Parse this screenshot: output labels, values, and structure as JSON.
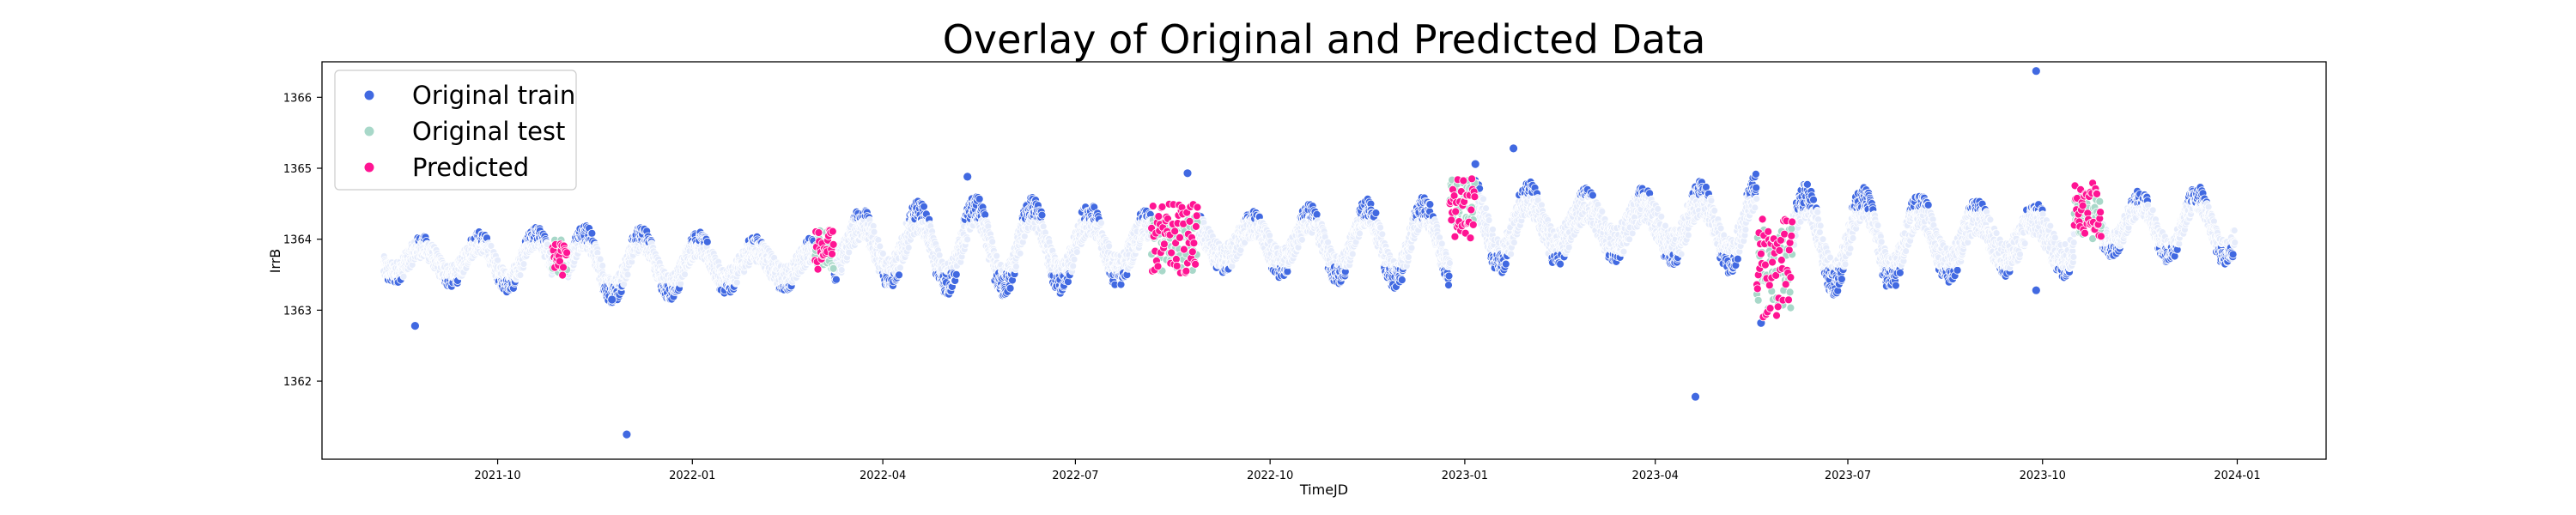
{
  "chart_data": {
    "type": "scatter",
    "title": "Overlay of Original and Predicted Data",
    "xlabel": "TimeJD",
    "ylabel": "IrrB",
    "xlim": [
      "2021-07-10",
      "2024-02-12"
    ],
    "ylim": [
      1360.9,
      1366.5
    ],
    "x_ticks": [
      "2021-10",
      "2022-01",
      "2022-04",
      "2022-07",
      "2022-10",
      "2023-01",
      "2023-04",
      "2023-07",
      "2023-10",
      "2024-01"
    ],
    "y_ticks": [
      1362,
      1363,
      1364,
      1365,
      1366
    ],
    "legend": {
      "position": "top-left"
    },
    "grid": false,
    "series": [
      {
        "name": "Original train",
        "color": "#4169e1",
        "style": "oscillating",
        "segments": [
          {
            "start": "2021-08-08",
            "end": "2021-10-27",
            "center": 1363.7,
            "amp": 0.35
          },
          {
            "start": "2021-11-03",
            "end": "2022-02-28",
            "center": 1363.65,
            "amp": 0.4
          },
          {
            "start": "2022-03-09",
            "end": "2022-08-06",
            "center": 1363.9,
            "amp": 0.5
          },
          {
            "start": "2022-08-28",
            "end": "2022-12-25",
            "center": 1363.95,
            "amp": 0.45
          },
          {
            "start": "2023-01-06",
            "end": "2023-05-19",
            "center": 1364.2,
            "amp": 0.55
          },
          {
            "start": "2023-06-05",
            "end": "2023-10-16",
            "center": 1364.0,
            "amp": 0.55
          },
          {
            "start": "2023-10-29",
            "end": "2023-12-31",
            "center": 1364.2,
            "amp": 0.4
          }
        ],
        "outliers": [
          {
            "x": "2021-12-01",
            "y": 1361.25
          },
          {
            "x": "2023-04-20",
            "y": 1361.78
          },
          {
            "x": "2023-09-28",
            "y": 1366.37
          },
          {
            "x": "2023-01-24",
            "y": 1365.28
          },
          {
            "x": "2022-05-11",
            "y": 1364.88
          },
          {
            "x": "2022-08-23",
            "y": 1364.93
          },
          {
            "x": "2023-01-06",
            "y": 1365.06
          },
          {
            "x": "2021-08-23",
            "y": 1362.78
          },
          {
            "x": "2023-05-21",
            "y": 1362.82
          },
          {
            "x": "2023-09-28",
            "y": 1363.28
          },
          {
            "x": "2021-11-24",
            "y": 1363.15
          }
        ]
      },
      {
        "name": "Original test",
        "color": "#a8d8c9",
        "style": "band",
        "segments": [
          {
            "start": "2021-10-27",
            "end": "2021-11-03",
            "center": 1363.75,
            "amp": 0.25
          },
          {
            "start": "2022-02-28",
            "end": "2022-03-09",
            "center": 1363.85,
            "amp": 0.3
          },
          {
            "start": "2022-08-06",
            "end": "2022-08-28",
            "center": 1363.95,
            "amp": 0.4
          },
          {
            "start": "2022-12-25",
            "end": "2023-01-06",
            "center": 1364.5,
            "amp": 0.35
          },
          {
            "start": "2023-05-19",
            "end": "2023-06-05",
            "center": 1363.6,
            "amp": 0.6
          },
          {
            "start": "2023-10-16",
            "end": "2023-10-29",
            "center": 1364.35,
            "amp": 0.35
          }
        ]
      },
      {
        "name": "Predicted",
        "color": "#ff1493",
        "style": "band",
        "segments": [
          {
            "start": "2021-10-27",
            "end": "2021-11-03",
            "center": 1363.75,
            "amp": 0.28
          },
          {
            "start": "2022-02-28",
            "end": "2022-03-09",
            "center": 1363.85,
            "amp": 0.28
          },
          {
            "start": "2022-08-06",
            "end": "2022-08-28",
            "center": 1364.0,
            "amp": 0.5
          },
          {
            "start": "2022-12-25",
            "end": "2023-01-06",
            "center": 1364.45,
            "amp": 0.45
          },
          {
            "start": "2023-05-19",
            "end": "2023-06-05",
            "center": 1363.6,
            "amp": 0.7
          },
          {
            "start": "2023-10-16",
            "end": "2023-10-29",
            "center": 1364.4,
            "amp": 0.4
          }
        ]
      }
    ]
  }
}
